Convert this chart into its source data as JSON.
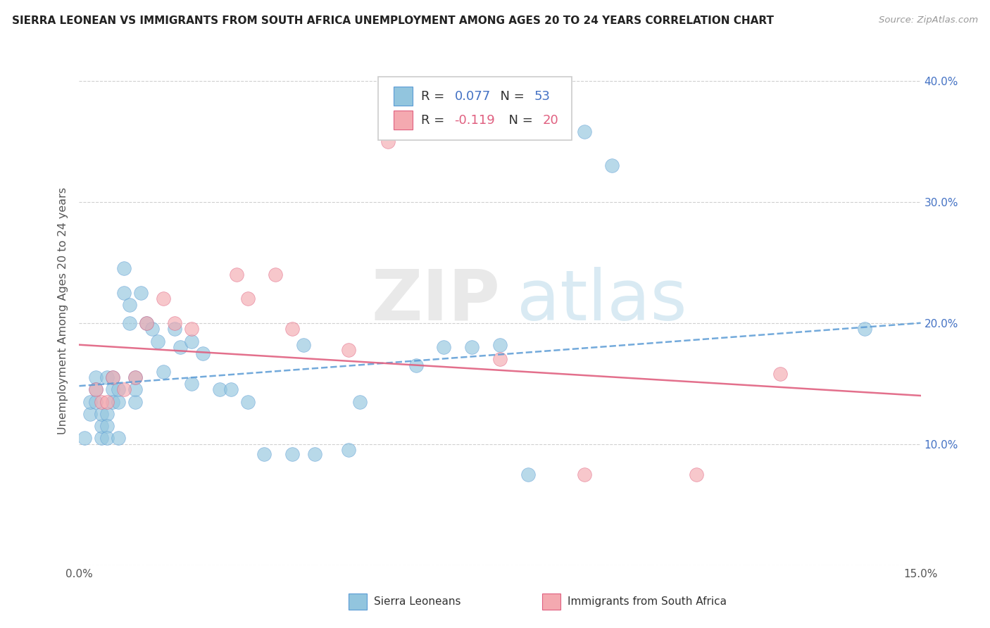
{
  "title": "SIERRA LEONEAN VS IMMIGRANTS FROM SOUTH AFRICA UNEMPLOYMENT AMONG AGES 20 TO 24 YEARS CORRELATION CHART",
  "source": "Source: ZipAtlas.com",
  "ylabel": "Unemployment Among Ages 20 to 24 years",
  "xlim": [
    0.0,
    0.15
  ],
  "ylim": [
    0.0,
    0.42
  ],
  "xticks": [
    0.0,
    0.05,
    0.1,
    0.15
  ],
  "xtick_labels": [
    "0.0%",
    "",
    "",
    "15.0%"
  ],
  "ytick_positions": [
    0.0,
    0.1,
    0.2,
    0.3,
    0.4
  ],
  "ytick_labels_right": [
    "",
    "10.0%",
    "20.0%",
    "30.0%",
    "40.0%"
  ],
  "legend_label1": "Sierra Leoneans",
  "legend_label2": "Immigrants from South Africa",
  "r1": "0.077",
  "n1": "53",
  "r2": "-0.119",
  "n2": "20",
  "color1": "#92c5de",
  "color2": "#f4a9b0",
  "line_color1": "#5b9bd5",
  "line_color2": "#e06080",
  "watermark_zip": "ZIP",
  "watermark_atlas": "atlas",
  "watermark_color_zip": "#c0c0c0",
  "watermark_color_atlas": "#92c5de",
  "blue_points_x": [
    0.001,
    0.002,
    0.002,
    0.003,
    0.003,
    0.003,
    0.004,
    0.004,
    0.004,
    0.005,
    0.005,
    0.005,
    0.005,
    0.006,
    0.006,
    0.006,
    0.007,
    0.007,
    0.007,
    0.008,
    0.008,
    0.009,
    0.009,
    0.01,
    0.01,
    0.01,
    0.011,
    0.012,
    0.013,
    0.014,
    0.015,
    0.017,
    0.018,
    0.02,
    0.02,
    0.022,
    0.025,
    0.027,
    0.03,
    0.033,
    0.038,
    0.04,
    0.042,
    0.048,
    0.05,
    0.06,
    0.065,
    0.07,
    0.075,
    0.08,
    0.09,
    0.095,
    0.14
  ],
  "blue_points_y": [
    0.105,
    0.125,
    0.135,
    0.155,
    0.145,
    0.135,
    0.105,
    0.115,
    0.125,
    0.155,
    0.125,
    0.115,
    0.105,
    0.155,
    0.145,
    0.135,
    0.135,
    0.145,
    0.105,
    0.225,
    0.245,
    0.2,
    0.215,
    0.135,
    0.145,
    0.155,
    0.225,
    0.2,
    0.195,
    0.185,
    0.16,
    0.195,
    0.18,
    0.185,
    0.15,
    0.175,
    0.145,
    0.145,
    0.135,
    0.092,
    0.092,
    0.182,
    0.092,
    0.095,
    0.135,
    0.165,
    0.18,
    0.18,
    0.182,
    0.075,
    0.358,
    0.33,
    0.195
  ],
  "pink_points_x": [
    0.003,
    0.004,
    0.005,
    0.006,
    0.008,
    0.01,
    0.012,
    0.015,
    0.017,
    0.02,
    0.028,
    0.03,
    0.035,
    0.038,
    0.048,
    0.055,
    0.075,
    0.09,
    0.11,
    0.125
  ],
  "pink_points_y": [
    0.145,
    0.135,
    0.135,
    0.155,
    0.145,
    0.155,
    0.2,
    0.22,
    0.2,
    0.195,
    0.24,
    0.22,
    0.24,
    0.195,
    0.178,
    0.35,
    0.17,
    0.075,
    0.075,
    0.158
  ],
  "blue_line_x": [
    0.0,
    0.15
  ],
  "blue_line_y": [
    0.148,
    0.2
  ],
  "pink_line_x": [
    0.0,
    0.15
  ],
  "pink_line_y": [
    0.182,
    0.14
  ],
  "background_color": "#ffffff",
  "grid_color": "#d0d0d0"
}
